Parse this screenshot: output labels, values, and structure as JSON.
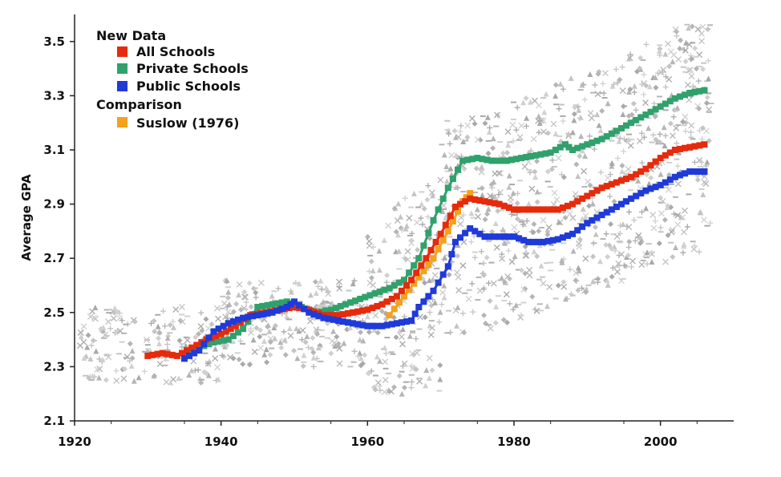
{
  "chart_data": {
    "type": "line",
    "ylabel": "Average GPA",
    "xlim": [
      1920,
      2010
    ],
    "ylim": [
      2.1,
      3.6
    ],
    "x_ticks": [
      "1920",
      "1940",
      "1960",
      "1980",
      "2000"
    ],
    "y_ticks": [
      "2.1",
      "2.3",
      "2.5",
      "2.7",
      "2.9",
      "3.1",
      "3.3",
      "3.5"
    ],
    "legend": {
      "position": "top-left",
      "group1_heading": "New Data",
      "group2_heading": "Comparison"
    },
    "series": [
      {
        "name": "All Schools",
        "color": "#e52b0c",
        "points": [
          [
            1930,
            2.34
          ],
          [
            1932,
            2.35
          ],
          [
            1934,
            2.34
          ],
          [
            1936,
            2.37
          ],
          [
            1938,
            2.4
          ],
          [
            1940,
            2.42
          ],
          [
            1942,
            2.45
          ],
          [
            1944,
            2.49
          ],
          [
            1946,
            2.5
          ],
          [
            1948,
            2.51
          ],
          [
            1950,
            2.52
          ],
          [
            1952,
            2.51
          ],
          [
            1954,
            2.49
          ],
          [
            1956,
            2.49
          ],
          [
            1958,
            2.5
          ],
          [
            1960,
            2.51
          ],
          [
            1962,
            2.53
          ],
          [
            1964,
            2.56
          ],
          [
            1966,
            2.62
          ],
          [
            1968,
            2.7
          ],
          [
            1970,
            2.79
          ],
          [
            1972,
            2.89
          ],
          [
            1974,
            2.92
          ],
          [
            1976,
            2.91
          ],
          [
            1978,
            2.9
          ],
          [
            1980,
            2.88
          ],
          [
            1982,
            2.88
          ],
          [
            1984,
            2.88
          ],
          [
            1986,
            2.88
          ],
          [
            1988,
            2.9
          ],
          [
            1990,
            2.93
          ],
          [
            1992,
            2.96
          ],
          [
            1994,
            2.98
          ],
          [
            1996,
            3.0
          ],
          [
            1998,
            3.03
          ],
          [
            2000,
            3.07
          ],
          [
            2002,
            3.1
          ],
          [
            2004,
            3.11
          ],
          [
            2006,
            3.12
          ]
        ]
      },
      {
        "name": "Private Schools",
        "color": "#30a16b",
        "points": [
          [
            1935,
            2.35
          ],
          [
            1937,
            2.37
          ],
          [
            1939,
            2.39
          ],
          [
            1941,
            2.4
          ],
          [
            1943,
            2.44
          ],
          [
            1945,
            2.52
          ],
          [
            1947,
            2.53
          ],
          [
            1949,
            2.54
          ],
          [
            1951,
            2.52
          ],
          [
            1953,
            2.5
          ],
          [
            1955,
            2.51
          ],
          [
            1957,
            2.53
          ],
          [
            1959,
            2.55
          ],
          [
            1961,
            2.57
          ],
          [
            1963,
            2.59
          ],
          [
            1965,
            2.62
          ],
          [
            1967,
            2.7
          ],
          [
            1969,
            2.84
          ],
          [
            1971,
            2.96
          ],
          [
            1973,
            3.06
          ],
          [
            1975,
            3.07
          ],
          [
            1977,
            3.06
          ],
          [
            1979,
            3.06
          ],
          [
            1981,
            3.07
          ],
          [
            1983,
            3.08
          ],
          [
            1985,
            3.09
          ],
          [
            1987,
            3.12
          ],
          [
            1988,
            3.1
          ],
          [
            1990,
            3.12
          ],
          [
            1992,
            3.14
          ],
          [
            1994,
            3.17
          ],
          [
            1996,
            3.2
          ],
          [
            1998,
            3.23
          ],
          [
            2000,
            3.26
          ],
          [
            2002,
            3.29
          ],
          [
            2004,
            3.31
          ],
          [
            2006,
            3.32
          ]
        ]
      },
      {
        "name": "Public Schools",
        "color": "#1f3ad8",
        "points": [
          [
            1935,
            2.33
          ],
          [
            1937,
            2.36
          ],
          [
            1939,
            2.43
          ],
          [
            1941,
            2.46
          ],
          [
            1943,
            2.48
          ],
          [
            1945,
            2.49
          ],
          [
            1947,
            2.5
          ],
          [
            1949,
            2.52
          ],
          [
            1950,
            2.54
          ],
          [
            1952,
            2.5
          ],
          [
            1954,
            2.48
          ],
          [
            1956,
            2.47
          ],
          [
            1958,
            2.46
          ],
          [
            1960,
            2.45
          ],
          [
            1962,
            2.45
          ],
          [
            1964,
            2.46
          ],
          [
            1966,
            2.47
          ],
          [
            1967,
            2.52
          ],
          [
            1969,
            2.58
          ],
          [
            1971,
            2.67
          ],
          [
            1972,
            2.76
          ],
          [
            1974,
            2.81
          ],
          [
            1976,
            2.78
          ],
          [
            1978,
            2.78
          ],
          [
            1980,
            2.78
          ],
          [
            1982,
            2.76
          ],
          [
            1984,
            2.76
          ],
          [
            1986,
            2.77
          ],
          [
            1988,
            2.79
          ],
          [
            1990,
            2.83
          ],
          [
            1992,
            2.86
          ],
          [
            1994,
            2.89
          ],
          [
            1996,
            2.92
          ],
          [
            1998,
            2.95
          ],
          [
            2000,
            2.97
          ],
          [
            2002,
            3.0
          ],
          [
            2004,
            3.02
          ],
          [
            2006,
            3.02
          ]
        ]
      },
      {
        "name": "Suslow (1976)",
        "color": "#f4a11c",
        "points": [
          [
            1963,
            2.49
          ],
          [
            1965,
            2.56
          ],
          [
            1967,
            2.63
          ],
          [
            1969,
            2.7
          ],
          [
            1971,
            2.8
          ],
          [
            1973,
            2.91
          ],
          [
            1974,
            2.94
          ]
        ]
      }
    ],
    "background_scatter": {
      "description_markers": [
        "plus",
        "triangle",
        "diamond",
        "dash",
        "cross"
      ],
      "color": "#bcbcbc"
    }
  }
}
